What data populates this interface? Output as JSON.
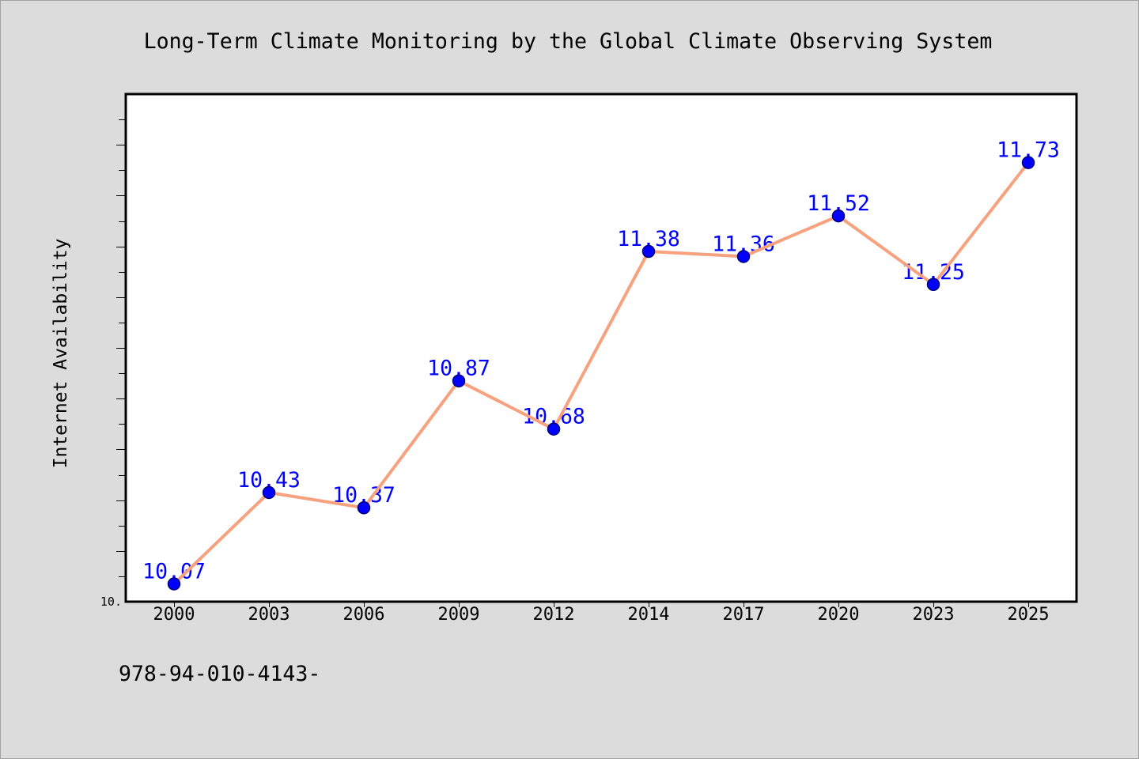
{
  "chart_data": {
    "type": "line",
    "title": "Long-Term Climate Monitoring by the Global Climate Observing System",
    "xlabel": "",
    "ylabel": "Internet Availability",
    "categories": [
      "2000",
      "2003",
      "2006",
      "2009",
      "2012",
      "2014",
      "2017",
      "2020",
      "2023",
      "2025"
    ],
    "series": [
      {
        "values": [
          10.07,
          10.43,
          10.37,
          10.87,
          10.68,
          11.38,
          11.36,
          11.52,
          11.25,
          11.73
        ],
        "data_labels": true
      }
    ],
    "ylim": [
      10,
      12
    ],
    "ytick_labels": [
      {
        "value": 10,
        "label": "10."
      }
    ],
    "minor_tick_step": 0.1,
    "grid": false,
    "legend": "none",
    "colors": {
      "line": "#f7a27f",
      "marker_fill": "#0000ff",
      "marker_edge": "#00007a",
      "data_label": "#0000ff",
      "figure_background": "#dcdcdc",
      "plot_background": "#ffffff",
      "axis": "#000000"
    }
  },
  "footer": {
    "code": "978-94-010-4143-"
  }
}
